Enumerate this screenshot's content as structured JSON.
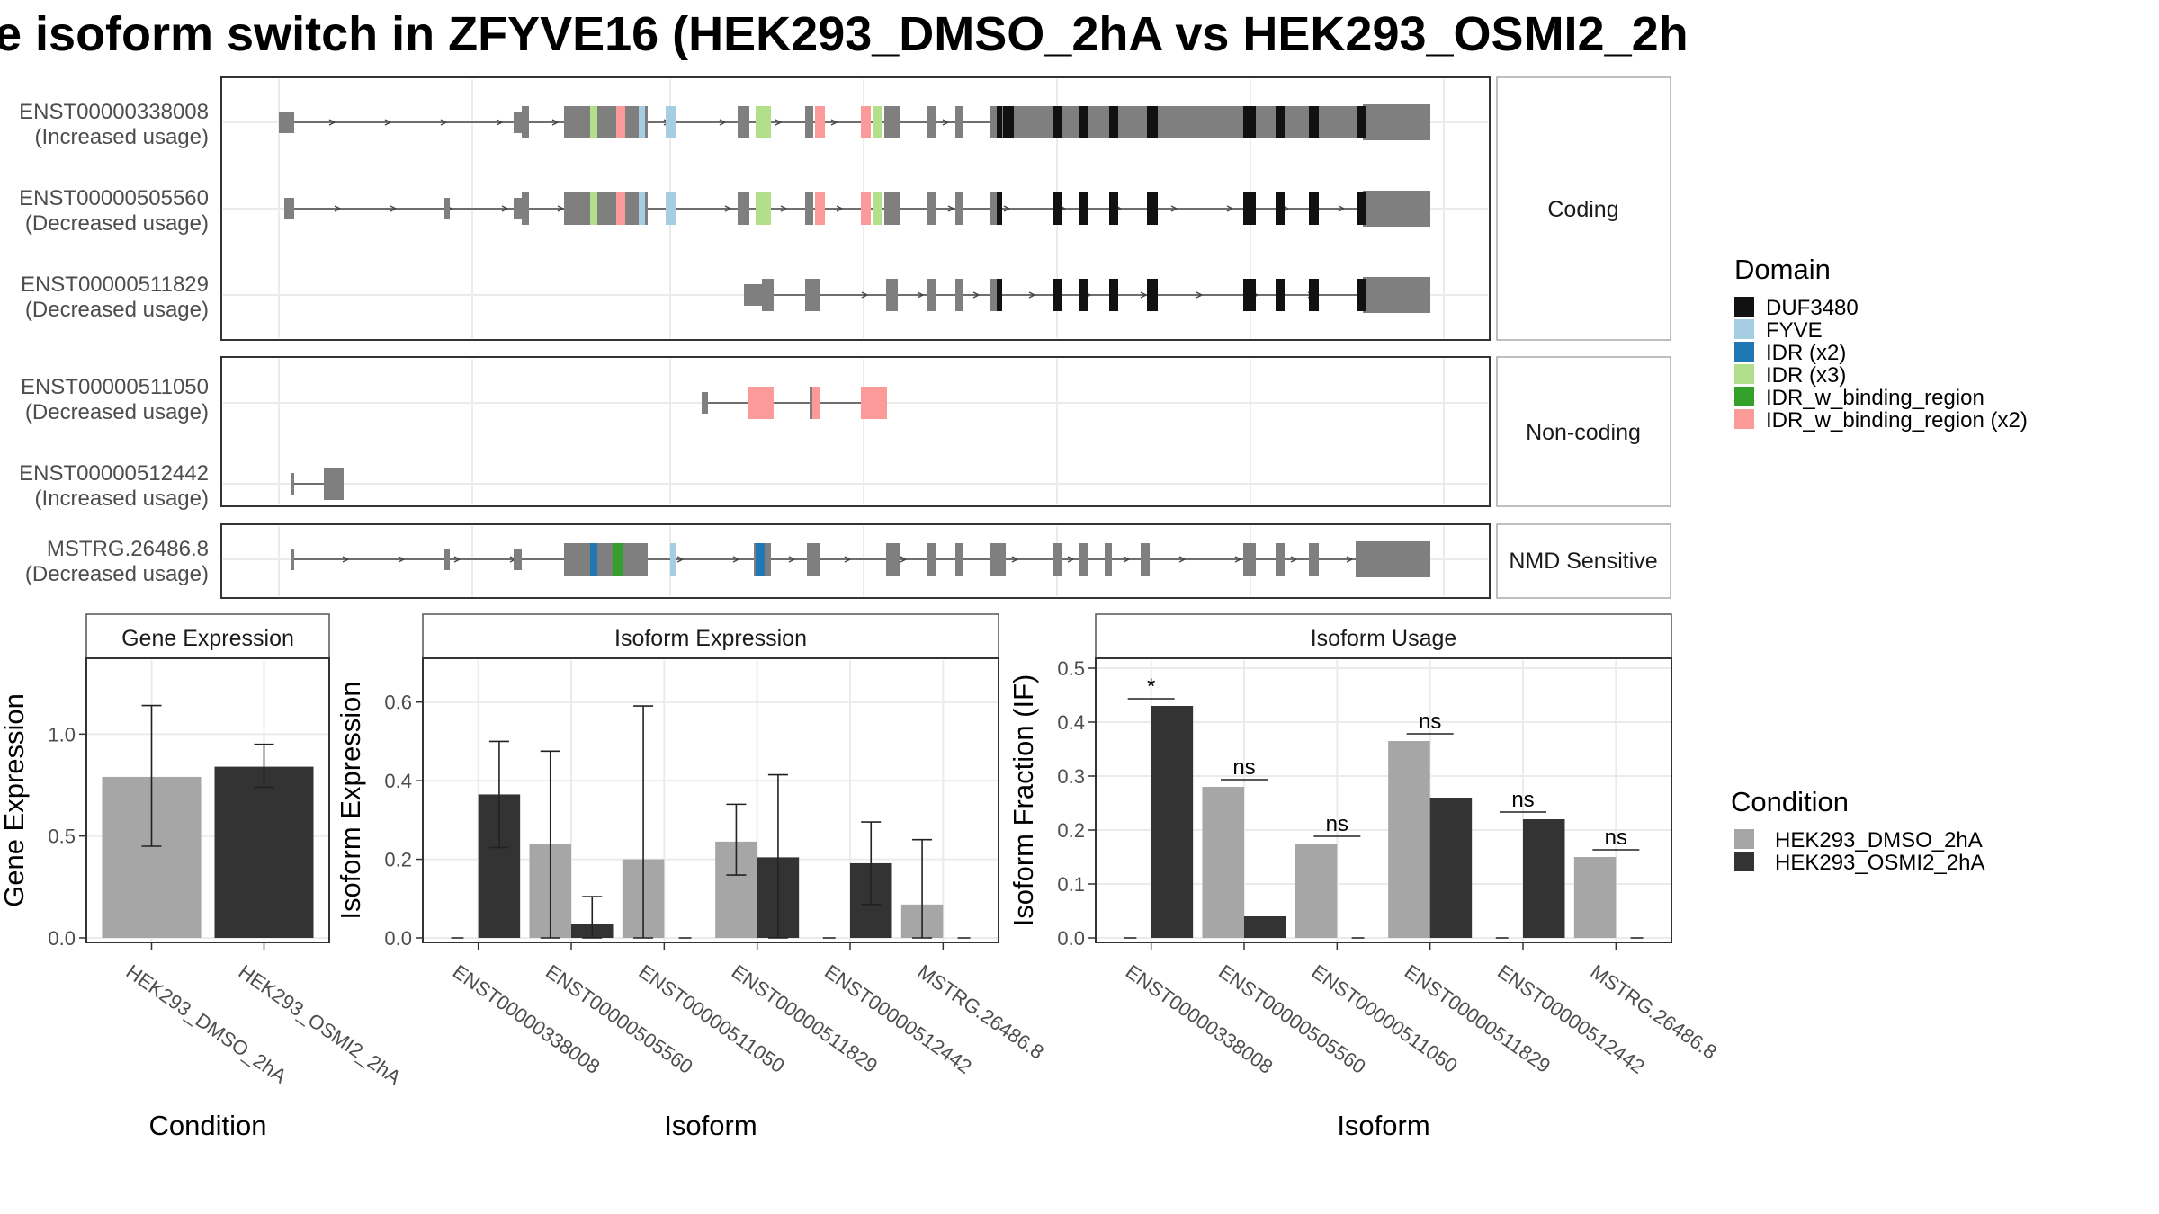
{
  "title": "e isoform switch in ZFYVE16 (HEK293_DMSO_2hA vs HEK293_OSMI2_2h",
  "colors": {
    "exon": "#7f7f7f",
    "cond1": "#a6a6a6",
    "cond2": "#333333",
    "panel_border": "#555555",
    "grid": "#ebebeb"
  },
  "domain_legend": {
    "title": "Domain",
    "items": [
      {
        "label": "DUF3480",
        "color": "#111111"
      },
      {
        "label": "FYVE",
        "color": "#a6cee3"
      },
      {
        "label": "IDR (x2)",
        "color": "#1f78b4"
      },
      {
        "label": "IDR (x3)",
        "color": "#b2df8a"
      },
      {
        "label": "IDR_w_binding_region",
        "color": "#33a02c"
      },
      {
        "label": "IDR_w_binding_region (x2)",
        "color": "#fb9a99"
      }
    ]
  },
  "condition_legend": {
    "title": "Condition",
    "items": [
      {
        "label": "HEK293_DMSO_2hA",
        "color": "#a6a6a6"
      },
      {
        "label": "HEK293_OSMI2_2hA",
        "color": "#333333"
      }
    ]
  },
  "structure_panel": {
    "facets": [
      {
        "label": "Coding",
        "isoforms": [
          {
            "id": "ENST00000338008",
            "usage": "(Increased usage)"
          },
          {
            "id": "ENST00000505560",
            "usage": "(Decreased usage)"
          },
          {
            "id": "ENST00000511829",
            "usage": "(Decreased usage)"
          }
        ]
      },
      {
        "label": "Non-coding",
        "isoforms": [
          {
            "id": "ENST00000511050",
            "usage": "(Decreased usage)"
          },
          {
            "id": "ENST00000512442",
            "usage": "(Increased usage)"
          }
        ]
      },
      {
        "label": "NMD Sensitive",
        "isoforms": [
          {
            "id": "MSTRG.26486.8",
            "usage": "(Decreased usage)"
          }
        ]
      }
    ]
  },
  "chart_data": [
    {
      "type": "bar",
      "title": "Gene Expression",
      "xlabel": "Condition",
      "ylabel": "Gene Expression",
      "ylim": [
        0,
        1.35
      ],
      "yticks": [
        "0.0",
        "0.5",
        "1.0"
      ],
      "categories": [
        "HEK293_DMSO_2hA",
        "HEK293_OSMI2_2hA"
      ],
      "series": [
        {
          "name": "HEK293_DMSO_2hA",
          "values": [
            0.79,
            null
          ],
          "err_low": [
            0.45,
            null
          ],
          "err_high": [
            1.14,
            null
          ]
        },
        {
          "name": "HEK293_OSMI2_2hA",
          "values": [
            null,
            0.84
          ],
          "err_low": [
            null,
            0.74
          ],
          "err_high": [
            null,
            0.95
          ]
        }
      ]
    },
    {
      "type": "bar",
      "title": "Isoform Expression",
      "xlabel": "Isoform",
      "ylabel": "Isoform Expression",
      "ylim": [
        0,
        0.7
      ],
      "yticks": [
        "0.0",
        "0.2",
        "0.4",
        "0.6"
      ],
      "categories": [
        "ENST00000338008",
        "ENST00000505560",
        "ENST00000511050",
        "ENST00000511829",
        "ENST00000512442",
        "MSTRG.26486.8"
      ],
      "series": [
        {
          "name": "HEK293_DMSO_2hA",
          "values": [
            0.0,
            0.24,
            0.2,
            0.245,
            0.0,
            0.085
          ],
          "err_low": [
            null,
            0.0,
            0.0,
            0.16,
            null,
            0.0
          ],
          "err_high": [
            null,
            0.475,
            0.59,
            0.34,
            null,
            0.25
          ]
        },
        {
          "name": "HEK293_OSMI2_2hA",
          "values": [
            0.365,
            0.035,
            0.0,
            0.205,
            0.19,
            0.0
          ],
          "err_low": [
            0.23,
            0.0,
            null,
            0.0,
            0.085,
            null
          ],
          "err_high": [
            0.5,
            0.105,
            null,
            0.415,
            0.295,
            null
          ]
        }
      ]
    },
    {
      "type": "bar",
      "title": "Isoform Usage",
      "xlabel": "Isoform",
      "ylabel": "Isoform Fraction (IF)",
      "ylim": [
        0,
        0.51
      ],
      "yticks": [
        "0.0",
        "0.1",
        "0.2",
        "0.3",
        "0.4",
        "0.5"
      ],
      "categories": [
        "ENST00000338008",
        "ENST00000505560",
        "ENST00000511050",
        "ENST00000511829",
        "ENST00000512442",
        "MSTRG.26486.8"
      ],
      "series": [
        {
          "name": "HEK293_DMSO_2hA",
          "values": [
            0.0,
            0.28,
            0.175,
            0.365,
            0.0,
            0.15
          ]
        },
        {
          "name": "HEK293_OSMI2_2hA",
          "values": [
            0.43,
            0.04,
            0.0,
            0.26,
            0.22,
            0.0
          ]
        }
      ],
      "annotations": [
        "*",
        "ns",
        "ns",
        "ns",
        "ns",
        "ns"
      ]
    }
  ]
}
